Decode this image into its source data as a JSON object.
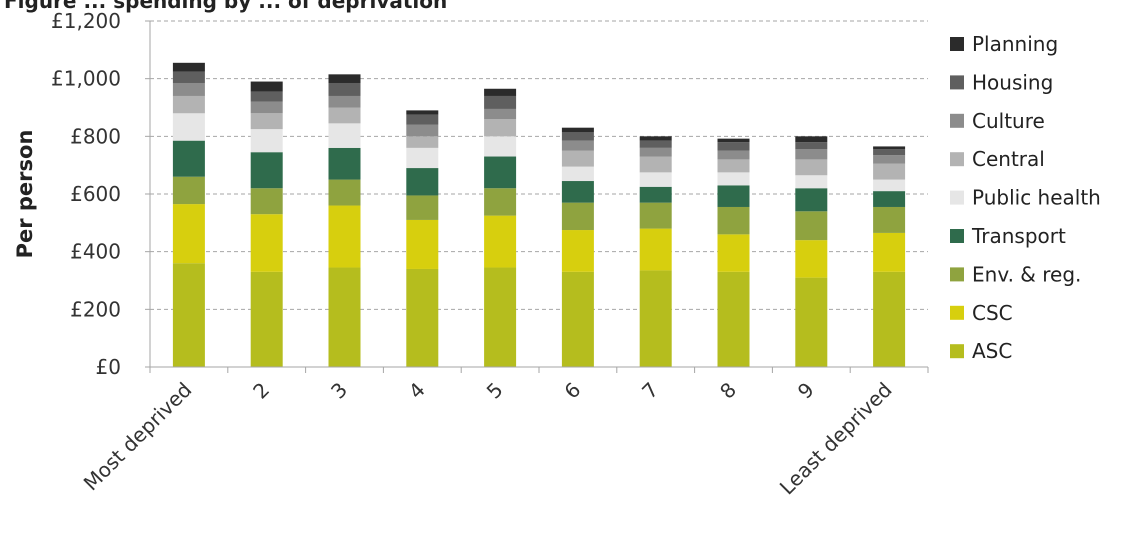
{
  "chart_data": {
    "type": "bar",
    "stacked": true,
    "title": "Figure ... spending by ... of deprivation",
    "ylabel": "Per person",
    "ylim": [
      0,
      1200
    ],
    "yticks": [
      0,
      200,
      400,
      600,
      800,
      1000,
      1200
    ],
    "ytick_labels": [
      "£0",
      "£200",
      "£400",
      "£600",
      "£800",
      "£1,000",
      "£1,200"
    ],
    "grid": "horizontal dashed",
    "legend_position": "right",
    "categories": [
      "Most deprived",
      "2",
      "3",
      "4",
      "5",
      "6",
      "7",
      "8",
      "9",
      "Least deprived"
    ],
    "series": [
      {
        "name": "ASC",
        "color": "#b5bd1e",
        "values": [
          360,
          330,
          345,
          340,
          345,
          330,
          335,
          330,
          310,
          330
        ]
      },
      {
        "name": "CSC",
        "color": "#d7cf0e",
        "values": [
          205,
          200,
          215,
          170,
          180,
          145,
          145,
          130,
          130,
          135
        ]
      },
      {
        "name": "Env. & reg.",
        "color": "#8fa33f",
        "values": [
          95,
          90,
          90,
          85,
          95,
          95,
          90,
          95,
          100,
          90
        ]
      },
      {
        "name": "Transport",
        "color": "#2f6b4c",
        "values": [
          125,
          125,
          110,
          95,
          110,
          75,
          55,
          75,
          80,
          55
        ]
      },
      {
        "name": "Public health",
        "color": "#e6e6e6",
        "values": [
          95,
          80,
          85,
          70,
          70,
          50,
          50,
          45,
          45,
          40
        ]
      },
      {
        "name": "Central",
        "color": "#b3b3b3",
        "values": [
          60,
          55,
          55,
          40,
          60,
          55,
          55,
          45,
          55,
          55
        ]
      },
      {
        "name": "Culture",
        "color": "#8c8c8c",
        "values": [
          45,
          40,
          40,
          40,
          35,
          35,
          30,
          30,
          35,
          30
        ]
      },
      {
        "name": "Housing",
        "color": "#5f5f5f",
        "values": [
          40,
          35,
          45,
          35,
          45,
          30,
          25,
          30,
          25,
          20
        ]
      },
      {
        "name": "Planning",
        "color": "#2b2b2b",
        "values": [
          30,
          35,
          30,
          15,
          25,
          15,
          15,
          12,
          20,
          10
        ]
      }
    ]
  }
}
